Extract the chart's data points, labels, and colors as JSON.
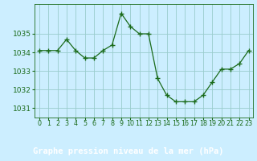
{
  "x": [
    0,
    1,
    2,
    3,
    4,
    5,
    6,
    7,
    8,
    9,
    10,
    11,
    12,
    13,
    14,
    15,
    16,
    17,
    18,
    19,
    20,
    21,
    22,
    23
  ],
  "y": [
    1034.1,
    1034.1,
    1034.1,
    1034.7,
    1034.1,
    1033.7,
    1033.7,
    1034.1,
    1034.4,
    1036.1,
    1035.4,
    1035.0,
    1035.0,
    1032.6,
    1031.7,
    1031.35,
    1031.35,
    1031.35,
    1031.7,
    1032.4,
    1033.1,
    1033.1,
    1033.4,
    1034.1
  ],
  "line_color": "#1a6b1a",
  "marker_color": "#1a6b1a",
  "bg_color": "#cceeff",
  "grid_color": "#99cccc",
  "bottom_bar_color": "#2d7a2d",
  "title": "Graphe pression niveau de la mer (hPa)",
  "xlabel_ticks": [
    "0",
    "1",
    "2",
    "3",
    "4",
    "5",
    "6",
    "7",
    "8",
    "9",
    "10",
    "11",
    "12",
    "13",
    "14",
    "15",
    "16",
    "17",
    "18",
    "19",
    "20",
    "21",
    "22",
    "23"
  ],
  "ylim": [
    1030.5,
    1036.6
  ],
  "yticks": [
    1031,
    1032,
    1033,
    1034,
    1035
  ],
  "title_color": "#1a6b1a",
  "tick_color": "#1a6b1a",
  "title_fontsize": 7.5,
  "tick_fontsize": 6.5,
  "xtick_fontsize": 5.8,
  "figsize": [
    3.2,
    2.0
  ],
  "dpi": 100
}
